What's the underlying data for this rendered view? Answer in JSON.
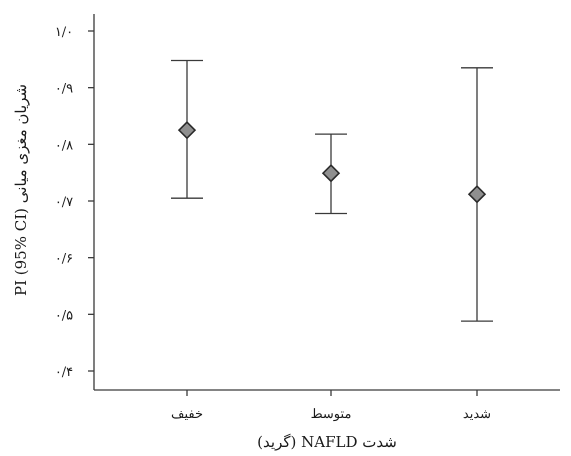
{
  "chart_data": {
    "type": "scatter",
    "xlabel": "شدت NAFLD (گرید)",
    "ylabel": "PI (95% CI) شریان مغزی میانی",
    "ylim": [
      0.35,
      1.05
    ],
    "y_ticks": [
      1.0,
      0.9,
      0.8,
      0.7,
      0.6,
      0.5,
      0.4
    ],
    "y_tick_labels": [
      "۱/۰",
      "۰/۹",
      "۰/۸",
      "۰/۷",
      "۰/۶",
      "۰/۵",
      "۰/۴"
    ],
    "categories": [
      "خفیف",
      "متوسط",
      "شدید"
    ],
    "points": [
      {
        "category": "خفیف",
        "mean": 0.825,
        "lower": 0.705,
        "upper": 0.948
      },
      {
        "category": "متوسط",
        "mean": 0.749,
        "lower": 0.678,
        "upper": 0.818
      },
      {
        "category": "شدید",
        "mean": 0.712,
        "lower": 0.488,
        "upper": 0.935
      }
    ],
    "marker": "diamond",
    "marker_color": "#8f8f8f",
    "line_color": "#3a3a3a",
    "grid": false
  }
}
